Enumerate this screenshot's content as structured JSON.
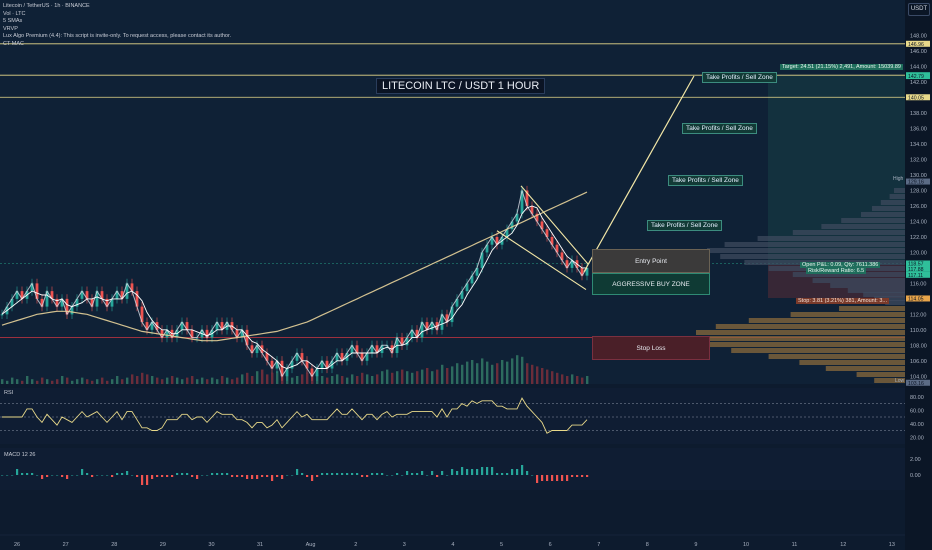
{
  "header": {
    "symbol_line": "Litecoin / TetherUS · 1h · BINANCE",
    "indicators": [
      "Vol · LTC",
      "5 SMAs",
      "VRVP",
      "Lux Algo Premium (4.4): This script is invite-only. To request access, please contact its author.",
      "CT MAC"
    ],
    "currency_button": "USDT"
  },
  "banner": "LITECOIN LTC / USDT 1 HOUR",
  "zones": {
    "take_profit": "Take Profits / Sell Zone",
    "entry": "Entry Point",
    "aggressive": "AGGRESSIVE BUY ZONE",
    "stop_loss": "Stop Loss"
  },
  "position": {
    "target": "Target: 24.51 (21.15%) 2,491, Amount: 15039.89",
    "open_pl": "Open P&L: 0.09, Qty: 7611.386",
    "risk_reward": "Risk/Reward Ratio: 6.5",
    "stop": "Stop: 3.81 (3.21%) 381, Amount: 3..."
  },
  "price_axis": {
    "labels": [
      "148.00",
      "146.00",
      "144.00",
      "142.00",
      "140.00",
      "138.00",
      "136.00",
      "134.00",
      "132.00",
      "130.00",
      "128.00",
      "126.00",
      "124.00",
      "122.00",
      "120.00",
      "118.00",
      "116.00",
      "114.00",
      "112.00",
      "110.00",
      "108.00",
      "106.00",
      "104.00"
    ],
    "badges": [
      {
        "text": "146.96",
        "color": "#e8d98a"
      },
      {
        "text": "142.90",
        "color": "#2fbf9a"
      },
      {
        "text": "142.79",
        "color": "#2fbf9a"
      },
      {
        "text": "140.05",
        "color": "#e8d98a"
      },
      {
        "text": "129.16",
        "color": "#5b6b85"
      },
      {
        "text": "118.57",
        "color": "#2fbf9a"
      },
      {
        "text": "117.11",
        "color": "#2fbf9a"
      },
      {
        "text": "117.88",
        "color": "#2fbf9a"
      },
      {
        "text": "114.05",
        "color": "#e8a54a"
      },
      {
        "text": "103.16",
        "color": "#5b6b85"
      }
    ],
    "high_label": "High",
    "low_label": "Low"
  },
  "rsi": {
    "label": "RSI",
    "levels": [
      "80.00",
      "60.00",
      "40.00",
      "20.00"
    ]
  },
  "macd": {
    "label": "MACD 12 26",
    "levels": [
      "2.00",
      "0.00"
    ]
  },
  "date_axis": [
    "26",
    "27",
    "28",
    "29",
    "30",
    "31",
    "Aug",
    "2",
    "3",
    "4",
    "5",
    "6",
    "7",
    "8",
    "9",
    "10",
    "11",
    "12",
    "13"
  ],
  "chart_data": {
    "type": "line",
    "title": "LITECOIN LTC / USDT 1 HOUR",
    "ylim": [
      103,
      149
    ],
    "x": [
      0,
      5,
      10,
      15,
      20,
      25,
      30,
      35,
      40,
      45,
      50,
      55,
      60,
      65,
      70,
      75,
      80,
      85,
      90,
      95,
      100,
      105,
      110,
      115,
      120,
      125,
      130,
      135,
      140,
      145,
      150,
      155,
      160,
      165,
      170,
      175,
      180,
      185,
      190,
      195,
      200,
      205,
      210,
      215,
      220,
      225,
      230,
      235,
      240,
      245,
      250,
      255,
      260,
      265,
      270,
      275,
      280,
      285,
      290,
      295,
      300,
      305,
      310,
      315,
      320,
      325,
      330,
      335,
      340,
      345,
      350,
      355,
      360,
      365,
      370,
      375,
      380,
      385,
      390,
      395,
      400,
      405,
      410,
      415,
      420,
      425,
      430,
      435,
      440,
      445,
      450,
      455,
      460,
      465,
      470,
      475,
      480,
      485,
      490,
      495,
      500,
      505,
      510,
      515,
      520,
      525,
      530,
      535,
      540,
      545,
      550,
      555,
      560,
      565,
      570,
      575,
      580,
      585
    ],
    "series": [
      {
        "name": "LTC/USDT",
        "color": "#d9dde6",
        "values": [
          112,
          113,
          114,
          115,
          114,
          115,
          116,
          114,
          113,
          115,
          114,
          113,
          114,
          112,
          113,
          114,
          115,
          114,
          113,
          115,
          114,
          113,
          114,
          115,
          114,
          116,
          115,
          113,
          111,
          110,
          111,
          110,
          109,
          110,
          109,
          110,
          111,
          110,
          109,
          109,
          110,
          109,
          110,
          111,
          110,
          111,
          110,
          109,
          110,
          108,
          107,
          108,
          107,
          106,
          105,
          106,
          104,
          105,
          106,
          107,
          106,
          105,
          104,
          105,
          106,
          105,
          106,
          107,
          106,
          107,
          108,
          107,
          106,
          107,
          108,
          107,
          108,
          108,
          107,
          109,
          108,
          109,
          110,
          109,
          111,
          110,
          111,
          110,
          112,
          111,
          113,
          114,
          115,
          116,
          117,
          118,
          120,
          121,
          122,
          121,
          122,
          123,
          124,
          125,
          128,
          126,
          125,
          124,
          123,
          122,
          121,
          120,
          119,
          118,
          119,
          118,
          117,
          118
        ]
      },
      {
        "name": "MA",
        "color": "#e8d39a",
        "values": [
          110.6,
          110.8,
          111,
          111.2,
          111.4,
          111.6,
          111.8,
          112,
          112.1,
          112.2,
          112.3,
          112.4,
          112.4,
          112.4,
          112.3,
          112.2,
          112.1,
          112,
          111.8,
          111.6,
          111.4,
          111.2,
          111.0,
          110.8,
          110.6,
          110.4,
          110.2,
          110.0,
          109.8,
          109.7,
          109.6,
          109.5,
          109.4,
          109.3,
          109.2,
          109.1,
          109.0,
          108.9,
          108.8,
          108.7,
          108.6,
          108.6,
          108.6,
          108.6,
          108.7,
          108.8,
          108.9,
          109,
          109.1,
          109.2,
          109.3,
          109.4,
          109.5,
          109.6,
          109.7,
          109.8,
          110,
          110.2,
          110.4,
          110.6,
          110.8,
          111,
          111.3,
          111.6,
          111.9,
          112.2,
          112.5,
          112.8,
          113.1,
          113.4,
          113.7,
          114,
          114.3,
          114.6,
          114.9,
          115.2,
          115.5,
          115.8,
          116.1,
          116.4,
          116.7,
          117,
          117.3,
          117.6,
          117.9,
          118.2,
          118.5,
          118.8,
          119.1,
          119.4,
          119.7,
          120,
          120.3,
          120.6,
          120.9,
          121.2,
          121.5,
          121.8,
          122.1,
          122.4,
          122.7,
          123,
          123.3,
          123.6,
          123.9,
          124.2,
          124.5,
          124.8,
          125.1,
          125.4,
          125.7,
          126,
          126.3,
          126.6,
          126.9,
          127.2,
          127.5,
          127.8
        ]
      }
    ],
    "volume": [
      3,
      2,
      4,
      3,
      2,
      5,
      3,
      2,
      4,
      3,
      2,
      3,
      5,
      4,
      2,
      3,
      4,
      3,
      2,
      3,
      4,
      2,
      3,
      5,
      3,
      4,
      6,
      5,
      7,
      6,
      5,
      4,
      3,
      4,
      5,
      4,
      3,
      4,
      5,
      3,
      4,
      3,
      4,
      3,
      5,
      4,
      3,
      4,
      6,
      7,
      5,
      8,
      9,
      6,
      7,
      8,
      6,
      5,
      4,
      5,
      6,
      7,
      5,
      6,
      5,
      4,
      5,
      6,
      5,
      4,
      6,
      5,
      7,
      6,
      5,
      6,
      8,
      9,
      7,
      8,
      9,
      8,
      7,
      8,
      9,
      10,
      8,
      9,
      12,
      10,
      11,
      13,
      12,
      14,
      15,
      13,
      16,
      14,
      12,
      13,
      15,
      14,
      16,
      18,
      17,
      13,
      12,
      11,
      10,
      9,
      8,
      7,
      6,
      5,
      6,
      5,
      4,
      5
    ],
    "annotations": {
      "entry": 119,
      "aggressive_buy": 116,
      "stop_loss": 106.5,
      "target": 142.9,
      "take_profits": [
        133.5,
        127.5,
        122
      ]
    }
  }
}
